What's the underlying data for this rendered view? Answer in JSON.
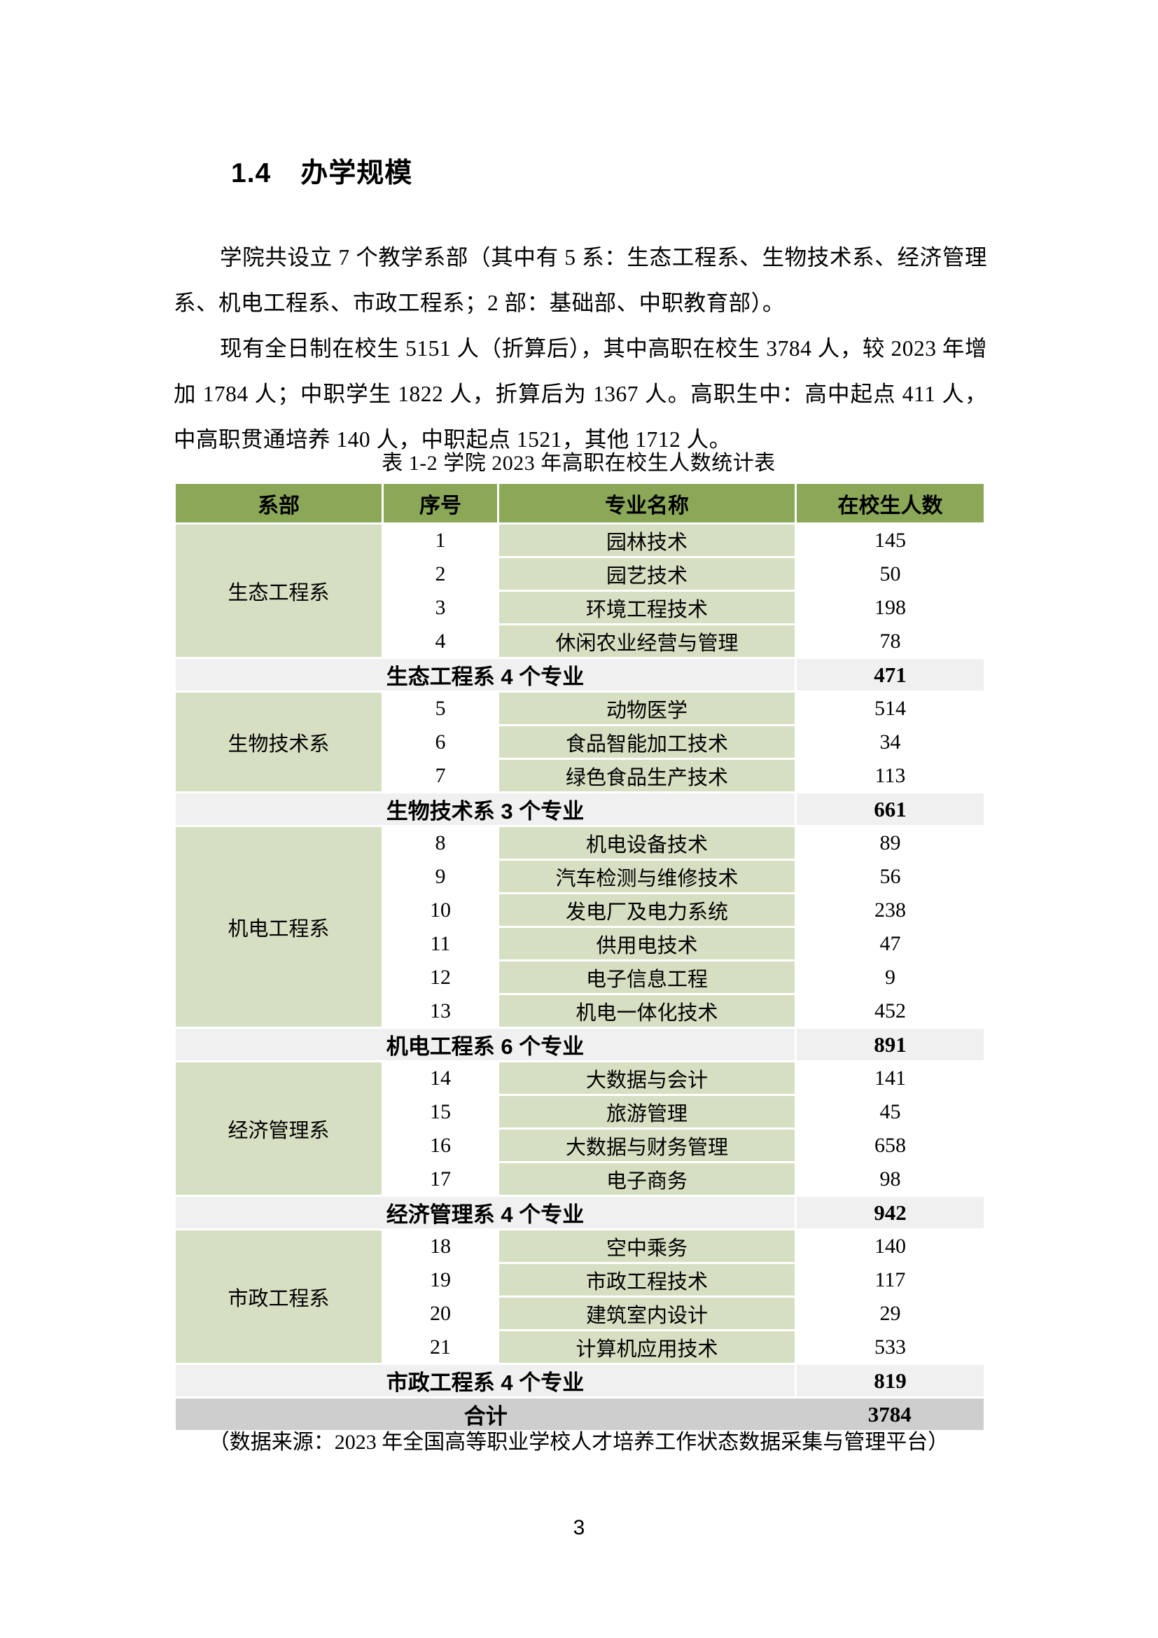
{
  "heading": {
    "number": "1.4",
    "title": "办学规模"
  },
  "paragraphs": [
    "学院共设立 7 个教学系部（其中有 5 系：生态工程系、生物技术系、经济管理系、机电工程系、市政工程系；2 部：基础部、中职教育部）。",
    "现有全日制在校生 5151 人（折算后），其中高职在校生 3784 人，较 2023 年增加 1784 人；中职学生 1822 人，折算后为 1367 人。高职生中：高中起点 411 人，中高职贯通培养 140 人，中职起点 1521，其他 1712 人。"
  ],
  "table": {
    "caption": "表 1-2 学院 2023 年高职在校生人数统计表",
    "columns": [
      "系部",
      "序号",
      "专业名称",
      "在校生人数"
    ],
    "sections": [
      {
        "department": "生态工程系",
        "rows": [
          {
            "no": "1",
            "major": "园林技术",
            "count": "145"
          },
          {
            "no": "2",
            "major": "园艺技术",
            "count": "50"
          },
          {
            "no": "3",
            "major": "环境工程技术",
            "count": "198"
          },
          {
            "no": "4",
            "major": "休闲农业经营与管理",
            "count": "78"
          }
        ],
        "summary": {
          "label": "生态工程系 4 个专业",
          "count": "471"
        }
      },
      {
        "department": "生物技术系",
        "rows": [
          {
            "no": "5",
            "major": "动物医学",
            "count": "514"
          },
          {
            "no": "6",
            "major": "食品智能加工技术",
            "count": "34"
          },
          {
            "no": "7",
            "major": "绿色食品生产技术",
            "count": "113"
          }
        ],
        "summary": {
          "label": "生物技术系 3 个专业",
          "count": "661"
        }
      },
      {
        "department": "机电工程系",
        "rows": [
          {
            "no": "8",
            "major": "机电设备技术",
            "count": "89"
          },
          {
            "no": "9",
            "major": "汽车检测与维修技术",
            "count": "56"
          },
          {
            "no": "10",
            "major": "发电厂及电力系统",
            "count": "238"
          },
          {
            "no": "11",
            "major": "供用电技术",
            "count": "47"
          },
          {
            "no": "12",
            "major": "电子信息工程",
            "count": "9"
          },
          {
            "no": "13",
            "major": "机电一体化技术",
            "count": "452"
          }
        ],
        "summary": {
          "label": "机电工程系 6 个专业",
          "count": "891"
        }
      },
      {
        "department": "经济管理系",
        "rows": [
          {
            "no": "14",
            "major": "大数据与会计",
            "count": "141"
          },
          {
            "no": "15",
            "major": "旅游管理",
            "count": "45"
          },
          {
            "no": "16",
            "major": "大数据与财务管理",
            "count": "658"
          },
          {
            "no": "17",
            "major": "电子商务",
            "count": "98"
          }
        ],
        "summary": {
          "label": "经济管理系 4 个专业",
          "count": "942"
        }
      },
      {
        "department": "市政工程系",
        "rows": [
          {
            "no": "18",
            "major": "空中乘务",
            "count": "140"
          },
          {
            "no": "19",
            "major": "市政工程技术",
            "count": "117"
          },
          {
            "no": "20",
            "major": "建筑室内设计",
            "count": "29"
          },
          {
            "no": "21",
            "major": "计算机应用技术",
            "count": "533"
          }
        ],
        "summary": {
          "label": "市政工程系 4 个专业",
          "count": "819"
        }
      }
    ],
    "total": {
      "label": "合计",
      "count": "3784"
    }
  },
  "source_note": "（数据来源：2023 年全国高等职业学校人才培养工作状态数据采集与管理平台）",
  "page_number": "3",
  "colors": {
    "header_green": "#8ba858",
    "cell_green": "#d6dfc2",
    "summary_gray": "#f0f0f0",
    "total_gray": "#cecece"
  }
}
